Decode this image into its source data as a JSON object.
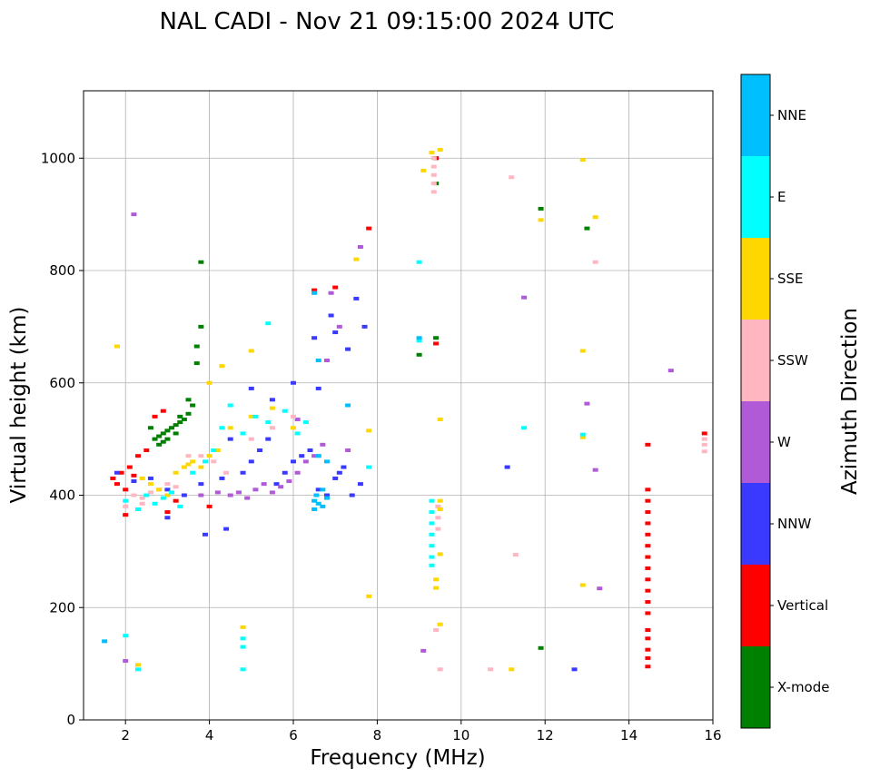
{
  "chart_data": {
    "type": "scatter",
    "title": "NAL CADI - Nov 21 09:15:00 2024 UTC",
    "xlabel": "Frequency (MHz)",
    "ylabel": "Virtual height (km)",
    "xlim": [
      1.0,
      16.0
    ],
    "ylim": [
      0,
      1120
    ],
    "x_ticks": [
      2,
      4,
      6,
      8,
      10,
      12,
      14,
      16
    ],
    "y_ticks": [
      0,
      200,
      400,
      600,
      800,
      1000
    ],
    "grid": true,
    "marker": "small horizontal dash",
    "colorbar": {
      "label": "Azimuth Direction",
      "categories": [
        {
          "name": "X-mode",
          "color": "#008000"
        },
        {
          "name": "Vertical",
          "color": "#ff0000"
        },
        {
          "name": "NNW",
          "color": "#3a3aff"
        },
        {
          "name": "W",
          "color": "#b05ad8"
        },
        {
          "name": "SSW",
          "color": "#ffb6c1"
        },
        {
          "name": "SSE",
          "color": "#ffd700"
        },
        {
          "name": "E",
          "color": "#00ffff"
        },
        {
          "name": "NNE",
          "color": "#00bfff"
        }
      ]
    },
    "series": [
      {
        "name": "X-mode",
        "points": [
          [
            2.7,
            500
          ],
          [
            2.8,
            505
          ],
          [
            2.9,
            510
          ],
          [
            3.0,
            515
          ],
          [
            3.1,
            520
          ],
          [
            3.2,
            525
          ],
          [
            3.3,
            530
          ],
          [
            3.4,
            535
          ],
          [
            3.5,
            545
          ],
          [
            3.6,
            560
          ],
          [
            2.9,
            495
          ],
          [
            3.0,
            500
          ],
          [
            3.2,
            510
          ],
          [
            3.3,
            540
          ],
          [
            3.5,
            570
          ],
          [
            3.7,
            665
          ],
          [
            3.8,
            700
          ],
          [
            3.8,
            815
          ],
          [
            3.7,
            635
          ],
          [
            9.4,
            1000
          ],
          [
            9.4,
            955
          ],
          [
            9.4,
            680
          ],
          [
            9.0,
            650
          ],
          [
            11.9,
            910
          ],
          [
            11.9,
            128
          ],
          [
            13.0,
            875
          ],
          [
            2.6,
            520
          ],
          [
            2.8,
            490
          ]
        ]
      },
      {
        "name": "Vertical",
        "points": [
          [
            1.7,
            430
          ],
          [
            1.8,
            420
          ],
          [
            1.9,
            440
          ],
          [
            2.0,
            410
          ],
          [
            2.1,
            450
          ],
          [
            2.2,
            435
          ],
          [
            2.3,
            470
          ],
          [
            2.5,
            480
          ],
          [
            2.7,
            540
          ],
          [
            2.9,
            550
          ],
          [
            3.0,
            370
          ],
          [
            3.2,
            390
          ],
          [
            2.0,
            365
          ],
          [
            4.0,
            380
          ],
          [
            6.5,
            765
          ],
          [
            7.0,
            770
          ],
          [
            7.8,
            875
          ],
          [
            9.4,
            1000
          ],
          [
            9.4,
            670
          ],
          [
            14.45,
            410
          ],
          [
            14.45,
            390
          ],
          [
            14.45,
            370
          ],
          [
            14.45,
            350
          ],
          [
            14.45,
            330
          ],
          [
            14.45,
            310
          ],
          [
            14.45,
            290
          ],
          [
            14.45,
            270
          ],
          [
            14.45,
            250
          ],
          [
            14.45,
            230
          ],
          [
            14.45,
            210
          ],
          [
            14.45,
            190
          ],
          [
            14.45,
            160
          ],
          [
            14.45,
            145
          ],
          [
            14.45,
            125
          ],
          [
            14.45,
            110
          ],
          [
            14.45,
            95
          ],
          [
            14.45,
            490
          ],
          [
            15.8,
            510
          ]
        ]
      },
      {
        "name": "NNW",
        "points": [
          [
            1.8,
            440
          ],
          [
            2.2,
            425
          ],
          [
            2.6,
            430
          ],
          [
            3.0,
            410
          ],
          [
            3.4,
            400
          ],
          [
            3.8,
            420
          ],
          [
            4.3,
            430
          ],
          [
            4.8,
            440
          ],
          [
            5.0,
            460
          ],
          [
            5.2,
            480
          ],
          [
            5.4,
            500
          ],
          [
            5.6,
            420
          ],
          [
            5.8,
            440
          ],
          [
            6.0,
            460
          ],
          [
            6.2,
            470
          ],
          [
            6.4,
            480
          ],
          [
            6.6,
            410
          ],
          [
            6.8,
            400
          ],
          [
            7.0,
            430
          ],
          [
            7.2,
            450
          ],
          [
            7.4,
            400
          ],
          [
            7.6,
            420
          ],
          [
            6.9,
            720
          ],
          [
            7.0,
            690
          ],
          [
            7.3,
            660
          ],
          [
            7.5,
            750
          ],
          [
            7.7,
            700
          ],
          [
            6.5,
            680
          ],
          [
            6.0,
            600
          ],
          [
            5.5,
            570
          ],
          [
            5.0,
            590
          ],
          [
            4.5,
            500
          ],
          [
            4.4,
            340
          ],
          [
            3.9,
            330
          ],
          [
            3.0,
            360
          ],
          [
            6.6,
            590
          ],
          [
            7.1,
            440
          ],
          [
            11.1,
            450
          ],
          [
            12.7,
            90
          ]
        ]
      },
      {
        "name": "W",
        "points": [
          [
            4.5,
            400
          ],
          [
            4.7,
            405
          ],
          [
            4.9,
            395
          ],
          [
            5.1,
            410
          ],
          [
            5.3,
            420
          ],
          [
            5.5,
            405
          ],
          [
            5.7,
            415
          ],
          [
            5.9,
            425
          ],
          [
            6.1,
            440
          ],
          [
            6.3,
            460
          ],
          [
            6.5,
            470
          ],
          [
            6.7,
            490
          ],
          [
            6.9,
            760
          ],
          [
            7.1,
            700
          ],
          [
            6.8,
            640
          ],
          [
            7.6,
            842
          ],
          [
            9.1,
            123
          ],
          [
            13.0,
            563
          ],
          [
            13.2,
            445
          ],
          [
            13.3,
            234
          ],
          [
            15.0,
            622
          ],
          [
            11.5,
            752
          ],
          [
            3.8,
            400
          ],
          [
            4.2,
            405
          ],
          [
            2.2,
            900
          ],
          [
            2.0,
            105
          ],
          [
            6.1,
            535
          ],
          [
            7.3,
            480
          ]
        ]
      },
      {
        "name": "SSW",
        "points": [
          [
            2.0,
            380
          ],
          [
            2.2,
            400
          ],
          [
            2.4,
            395
          ],
          [
            2.6,
            405
          ],
          [
            2.8,
            410
          ],
          [
            3.0,
            420
          ],
          [
            3.2,
            415
          ],
          [
            3.5,
            470
          ],
          [
            3.8,
            470
          ],
          [
            4.1,
            460
          ],
          [
            4.4,
            440
          ],
          [
            5.0,
            500
          ],
          [
            5.5,
            520
          ],
          [
            6.0,
            540
          ],
          [
            6.5,
            760
          ],
          [
            9.35,
            1000
          ],
          [
            9.35,
            985
          ],
          [
            9.35,
            970
          ],
          [
            9.35,
            955
          ],
          [
            9.35,
            940
          ],
          [
            9.45,
            380
          ],
          [
            9.45,
            360
          ],
          [
            9.45,
            340
          ],
          [
            9.4,
            160
          ],
          [
            9.5,
            90
          ],
          [
            10.7,
            90
          ],
          [
            11.3,
            294
          ],
          [
            13.2,
            815
          ],
          [
            15.8,
            500
          ],
          [
            15.8,
            490
          ],
          [
            15.8,
            478
          ],
          [
            11.2,
            966
          ],
          [
            2.4,
            385
          ]
        ]
      },
      {
        "name": "SSE",
        "points": [
          [
            2.4,
            430
          ],
          [
            2.6,
            420
          ],
          [
            2.8,
            410
          ],
          [
            3.0,
            400
          ],
          [
            3.2,
            440
          ],
          [
            3.4,
            450
          ],
          [
            3.5,
            455
          ],
          [
            3.6,
            460
          ],
          [
            3.8,
            450
          ],
          [
            4.0,
            470
          ],
          [
            4.2,
            480
          ],
          [
            4.5,
            520
          ],
          [
            5.0,
            540
          ],
          [
            5.5,
            555
          ],
          [
            6.0,
            520
          ],
          [
            9.3,
            1010
          ],
          [
            9.5,
            1015
          ],
          [
            9.1,
            978
          ],
          [
            9.4,
            250
          ],
          [
            9.4,
            235
          ],
          [
            9.5,
            390
          ],
          [
            9.5,
            375
          ],
          [
            9.5,
            535
          ],
          [
            9.5,
            295
          ],
          [
            9.5,
            170
          ],
          [
            11.2,
            90
          ],
          [
            11.9,
            890
          ],
          [
            12.9,
            997
          ],
          [
            13.2,
            895
          ],
          [
            12.9,
            657
          ],
          [
            12.9,
            503
          ],
          [
            12.9,
            240
          ],
          [
            7.8,
            220
          ],
          [
            7.8,
            515
          ],
          [
            4.8,
            165
          ],
          [
            4.3,
            630
          ],
          [
            4.0,
            600
          ],
          [
            2.3,
            98
          ],
          [
            7.5,
            820
          ],
          [
            1.8,
            665
          ],
          [
            5.0,
            657
          ]
        ]
      },
      {
        "name": "E",
        "points": [
          [
            2.0,
            390
          ],
          [
            2.3,
            375
          ],
          [
            2.5,
            400
          ],
          [
            2.7,
            385
          ],
          [
            2.9,
            395
          ],
          [
            3.1,
            405
          ],
          [
            3.3,
            380
          ],
          [
            3.6,
            440
          ],
          [
            3.9,
            460
          ],
          [
            4.1,
            480
          ],
          [
            4.3,
            520
          ],
          [
            4.5,
            560
          ],
          [
            4.8,
            510
          ],
          [
            5.1,
            540
          ],
          [
            5.4,
            530
          ],
          [
            5.8,
            550
          ],
          [
            6.1,
            510
          ],
          [
            6.3,
            530
          ],
          [
            6.6,
            470
          ],
          [
            7.8,
            450
          ],
          [
            9.3,
            390
          ],
          [
            9.3,
            370
          ],
          [
            9.3,
            350
          ],
          [
            9.3,
            330
          ],
          [
            9.3,
            310
          ],
          [
            9.3,
            290
          ],
          [
            9.3,
            275
          ],
          [
            9.0,
            815
          ],
          [
            9.0,
            675
          ],
          [
            11.5,
            520
          ],
          [
            12.9,
            508
          ],
          [
            4.8,
            145
          ],
          [
            4.8,
            130
          ],
          [
            4.8,
            90
          ],
          [
            2.3,
            90
          ],
          [
            2.0,
            150
          ],
          [
            5.4,
            706
          ]
        ]
      },
      {
        "name": "NNE",
        "points": [
          [
            6.5,
            390
          ],
          [
            6.5,
            375
          ],
          [
            6.55,
            400
          ],
          [
            6.6,
            385
          ],
          [
            6.7,
            380
          ],
          [
            6.8,
            395
          ],
          [
            6.7,
            410
          ],
          [
            6.6,
            470
          ],
          [
            6.8,
            460
          ],
          [
            6.5,
            760
          ],
          [
            6.6,
            640
          ],
          [
            9.0,
            680
          ],
          [
            7.3,
            560
          ],
          [
            1.5,
            140
          ]
        ]
      }
    ]
  }
}
